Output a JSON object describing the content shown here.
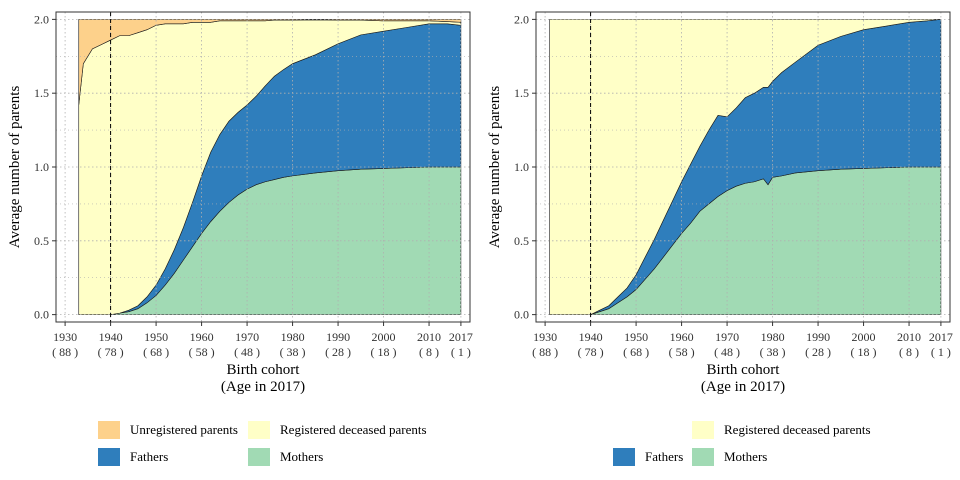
{
  "colors": {
    "unregistered": "#fdd18b",
    "deceased": "#ffffc7",
    "fathers": "#2f7ebc",
    "mothers": "#a1dab4",
    "panel_bg": "#ffffff",
    "grid": "#b0b0b0"
  },
  "chart_data": [
    {
      "type": "area",
      "stacked": true,
      "panel": "left",
      "xlabel": "Birth cohort",
      "xlabel_sub": "(Age in 2017)",
      "ylabel": "Average number of parents",
      "xlim": [
        1928,
        2019
      ],
      "ylim": [
        -0.05,
        2.05
      ],
      "grid": true,
      "reference_line_x": 1940,
      "xticks": [
        {
          "year": 1930,
          "label": "1930",
          "age": "( 88 )"
        },
        {
          "year": 1940,
          "label": "1940",
          "age": "( 78 )"
        },
        {
          "year": 1950,
          "label": "1950",
          "age": "( 68 )"
        },
        {
          "year": 1960,
          "label": "1960",
          "age": "( 58 )"
        },
        {
          "year": 1970,
          "label": "1970",
          "age": "( 48 )"
        },
        {
          "year": 1980,
          "label": "1980",
          "age": "( 38 )"
        },
        {
          "year": 1990,
          "label": "1990",
          "age": "( 28 )"
        },
        {
          "year": 2000,
          "label": "2000",
          "age": "( 18 )"
        },
        {
          "year": 2010,
          "label": "2010",
          "age": "( 8 )"
        },
        {
          "year": 2017,
          "label": "2017",
          "age": "( 1 )"
        }
      ],
      "yticks": [
        "0.0",
        "0.5",
        "1.0",
        "1.5",
        "2.0"
      ],
      "x": [
        1933,
        1934,
        1936,
        1938,
        1940,
        1942,
        1944,
        1946,
        1948,
        1950,
        1952,
        1954,
        1956,
        1958,
        1960,
        1962,
        1964,
        1966,
        1968,
        1970,
        1972,
        1974,
        1976,
        1978,
        1980,
        1985,
        1990,
        1995,
        2000,
        2005,
        2010,
        2014,
        2017
      ],
      "series": [
        {
          "name": "Mothers",
          "color_key": "mothers",
          "values": [
            0,
            0,
            0,
            0,
            0,
            0.01,
            0.02,
            0.04,
            0.08,
            0.13,
            0.2,
            0.28,
            0.37,
            0.46,
            0.55,
            0.63,
            0.7,
            0.76,
            0.81,
            0.85,
            0.88,
            0.9,
            0.915,
            0.93,
            0.94,
            0.96,
            0.975,
            0.985,
            0.99,
            0.995,
            1.0,
            1.0,
            1.0
          ]
        },
        {
          "name": "Fathers",
          "color_key": "fathers",
          "values": [
            0,
            0,
            0,
            0,
            0,
            0.0,
            0.01,
            0.02,
            0.04,
            0.07,
            0.11,
            0.16,
            0.22,
            0.3,
            0.39,
            0.47,
            0.52,
            0.55,
            0.56,
            0.57,
            0.6,
            0.65,
            0.7,
            0.73,
            0.76,
            0.8,
            0.86,
            0.91,
            0.93,
            0.95,
            0.97,
            0.97,
            0.96
          ]
        },
        {
          "name": "Registered deceased parents",
          "color_key": "deceased",
          "values": [
            1.42,
            1.7,
            1.8,
            1.83,
            1.86,
            1.88,
            1.86,
            1.85,
            1.81,
            1.76,
            1.66,
            1.53,
            1.38,
            1.22,
            1.04,
            0.88,
            0.77,
            0.68,
            0.62,
            0.57,
            0.51,
            0.44,
            0.38,
            0.335,
            0.295,
            0.237,
            0.16,
            0.1,
            0.07,
            0.045,
            0.02,
            0.015,
            0.02
          ]
        },
        {
          "name": "Unregistered parents",
          "color_key": "unregistered",
          "values": [
            0.58,
            0.3,
            0.2,
            0.17,
            0.14,
            0.11,
            0.11,
            0.09,
            0.07,
            0.04,
            0.03,
            0.03,
            0.03,
            0.02,
            0.02,
            0.02,
            0.01,
            0.01,
            0.01,
            0.01,
            0.01,
            0.01,
            0.005,
            0.005,
            0.005,
            0.003,
            0.005,
            0.005,
            0.01,
            0.01,
            0.01,
            0.015,
            0.02
          ]
        }
      ]
    },
    {
      "type": "area",
      "stacked": true,
      "panel": "right",
      "xlabel": "Birth cohort",
      "xlabel_sub": "(Age in 2017)",
      "ylabel": "Average number of parents",
      "xlim": [
        1928,
        2019
      ],
      "ylim": [
        -0.05,
        2.05
      ],
      "grid": true,
      "reference_line_x": 1940,
      "xticks": [
        {
          "year": 1930,
          "label": "1930",
          "age": "( 88 )"
        },
        {
          "year": 1940,
          "label": "1940",
          "age": "( 78 )"
        },
        {
          "year": 1950,
          "label": "1950",
          "age": "( 68 )"
        },
        {
          "year": 1960,
          "label": "1960",
          "age": "( 58 )"
        },
        {
          "year": 1970,
          "label": "1970",
          "age": "( 48 )"
        },
        {
          "year": 1980,
          "label": "1980",
          "age": "( 38 )"
        },
        {
          "year": 1990,
          "label": "1990",
          "age": "( 28 )"
        },
        {
          "year": 2000,
          "label": "2000",
          "age": "( 18 )"
        },
        {
          "year": 2010,
          "label": "2010",
          "age": "( 8 )"
        },
        {
          "year": 2017,
          "label": "2017",
          "age": "( 1 )"
        }
      ],
      "yticks": [
        "0.0",
        "0.5",
        "1.0",
        "1.5",
        "2.0"
      ],
      "x": [
        1931,
        1934,
        1937,
        1940,
        1942,
        1944,
        1946,
        1948,
        1950,
        1952,
        1954,
        1956,
        1958,
        1960,
        1962,
        1964,
        1966,
        1968,
        1970,
        1972,
        1974,
        1976,
        1978,
        1979,
        1980,
        1982,
        1985,
        1990,
        1995,
        2000,
        2005,
        2010,
        2014,
        2017
      ],
      "series": [
        {
          "name": "Mothers",
          "color_key": "mothers",
          "values": [
            0,
            0,
            0,
            0.0,
            0.02,
            0.04,
            0.08,
            0.12,
            0.17,
            0.24,
            0.31,
            0.39,
            0.47,
            0.55,
            0.62,
            0.7,
            0.75,
            0.8,
            0.84,
            0.87,
            0.89,
            0.9,
            0.92,
            0.88,
            0.93,
            0.94,
            0.96,
            0.975,
            0.985,
            0.99,
            0.995,
            1.0,
            1.0,
            1.0
          ]
        },
        {
          "name": "Fathers",
          "color_key": "fathers",
          "values": [
            0,
            0,
            0,
            0.0,
            0.01,
            0.02,
            0.04,
            0.06,
            0.1,
            0.15,
            0.2,
            0.25,
            0.3,
            0.35,
            0.4,
            0.44,
            0.5,
            0.55,
            0.5,
            0.53,
            0.58,
            0.6,
            0.62,
            0.66,
            0.65,
            0.7,
            0.75,
            0.85,
            0.9,
            0.94,
            0.96,
            0.98,
            0.99,
            1.0
          ]
        },
        {
          "name": "Registered deceased parents",
          "color_key": "deceased",
          "values": [
            2.0,
            2.0,
            2.0,
            2.0,
            1.97,
            1.94,
            1.88,
            1.82,
            1.73,
            1.61,
            1.49,
            1.36,
            1.23,
            1.1,
            0.98,
            0.86,
            0.75,
            0.65,
            0.66,
            0.6,
            0.53,
            0.5,
            0.46,
            0.46,
            0.42,
            0.36,
            0.29,
            0.175,
            0.115,
            0.07,
            0.045,
            0.02,
            0.01,
            0.0
          ]
        }
      ]
    }
  ],
  "legend_left": [
    {
      "label": "Unregistered parents",
      "color_key": "unregistered"
    },
    {
      "label": "Registered deceased parents",
      "color_key": "deceased"
    },
    {
      "label": "Fathers",
      "color_key": "fathers"
    },
    {
      "label": "Mothers",
      "color_key": "mothers"
    }
  ],
  "legend_right": [
    {
      "label": "Registered deceased parents",
      "color_key": "deceased"
    },
    {
      "label": "Fathers",
      "color_key": "fathers"
    },
    {
      "label": "Mothers",
      "color_key": "mothers"
    }
  ]
}
